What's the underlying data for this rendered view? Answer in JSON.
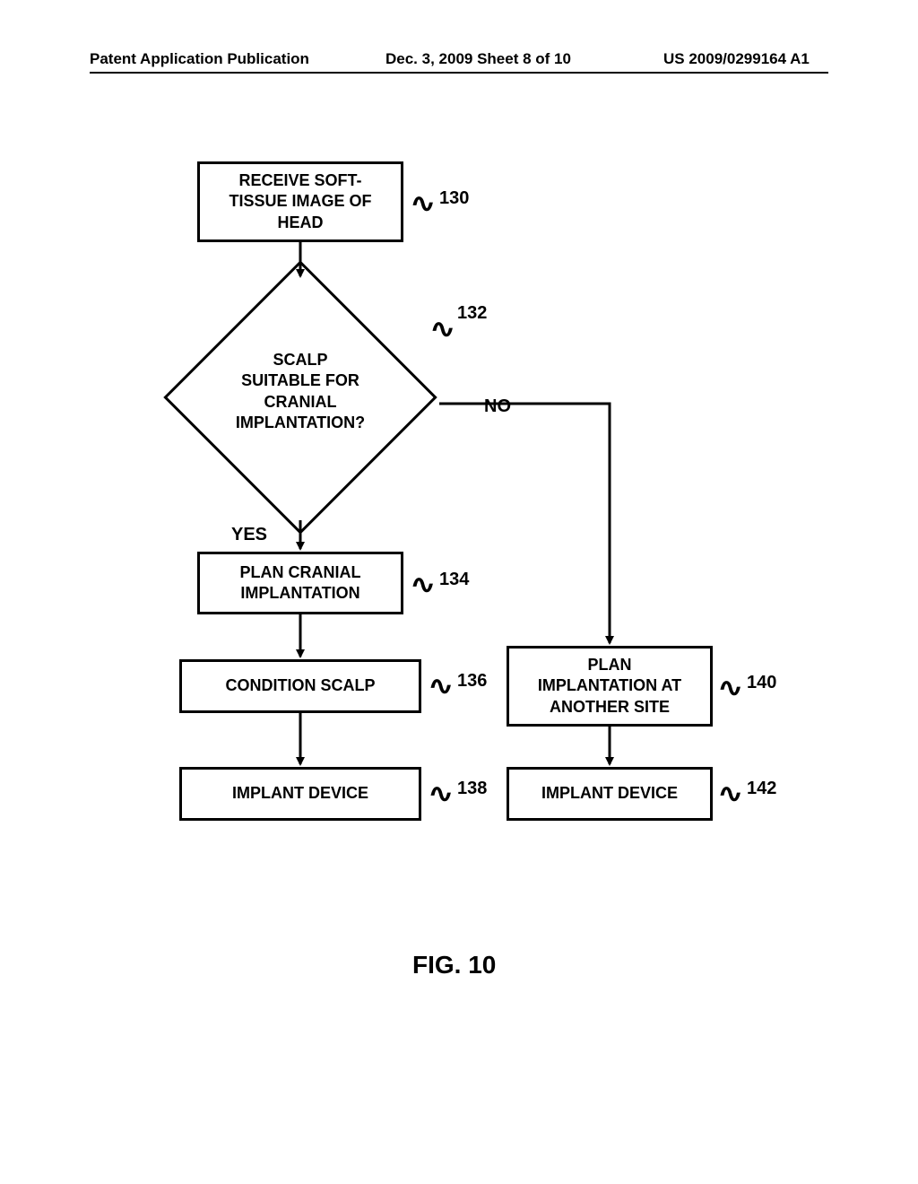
{
  "header": {
    "left": "Patent Application Publication",
    "center": "Dec. 3, 2009  Sheet 8 of 10",
    "right": "US 2009/0299164 A1"
  },
  "flowchart": {
    "type": "flowchart",
    "background_color": "#ffffff",
    "line_color": "#000000",
    "line_width": 3,
    "font_family": "Arial",
    "font_weight": "bold",
    "node_fontsize": 18,
    "ref_fontsize": 20,
    "nodes": {
      "n130": {
        "shape": "rect",
        "label": "RECEIVE SOFT-\nTISSUE IMAGE OF\nHEAD",
        "ref": "130"
      },
      "n132": {
        "shape": "diamond",
        "label": "SCALP\nSUITABLE FOR\nCRANIAL\nIMPLANTATION?",
        "ref": "132"
      },
      "n134": {
        "shape": "rect",
        "label": "PLAN CRANIAL\nIMPLANTATION",
        "ref": "134"
      },
      "n136": {
        "shape": "rect",
        "label": "CONDITION SCALP",
        "ref": "136"
      },
      "n138": {
        "shape": "rect",
        "label": "IMPLANT DEVICE",
        "ref": "138"
      },
      "n140": {
        "shape": "rect",
        "label": "PLAN\nIMPLANTATION AT\nANOTHER SITE",
        "ref": "140"
      },
      "n142": {
        "shape": "rect",
        "label": "IMPLANT DEVICE",
        "ref": "142"
      }
    },
    "edges": [
      {
        "from": "n130",
        "to": "n132",
        "label": null
      },
      {
        "from": "n132",
        "to": "n134",
        "label": "YES"
      },
      {
        "from": "n132",
        "to": "n140",
        "label": "NO"
      },
      {
        "from": "n134",
        "to": "n136",
        "label": null
      },
      {
        "from": "n136",
        "to": "n138",
        "label": null
      },
      {
        "from": "n140",
        "to": "n142",
        "label": null
      }
    ]
  },
  "caption": "FIG. 10"
}
